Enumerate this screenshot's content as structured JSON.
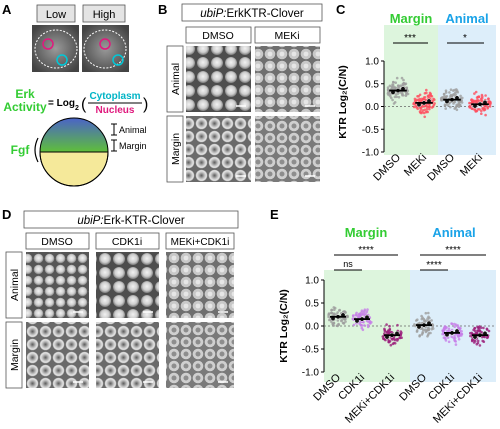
{
  "panels": {
    "A": {
      "letter": "A",
      "low_label": "Low",
      "high_label": "High",
      "erk_line1": "Erk",
      "erk_line2": "Activity",
      "equals_log": "= Log",
      "log_sub": "2",
      "cytoplasm": "Cytoplasm",
      "nucleus": "Nucleus",
      "fgf": "Fgf",
      "animal": "Animal",
      "margin": "Margin"
    },
    "B": {
      "letter": "B",
      "header_italic": "ubiP:",
      "header_rest": "ErkKTR-Clover",
      "cols": [
        "DMSO",
        "MEKi"
      ],
      "rows": [
        "Animal",
        "Margin"
      ]
    },
    "C": {
      "letter": "C",
      "group_margin": "Margin",
      "group_animal": "Animal",
      "sig_margin": "***",
      "sig_animal": "*",
      "ylabel": "KTR Log₂(C/N)",
      "yticks": [
        "1.0",
        "0.5",
        "0.0",
        "-0.5",
        "-1.0"
      ],
      "xlabels": [
        "DMSO",
        "MEKi",
        "DMSO",
        "MEKi"
      ]
    },
    "D": {
      "letter": "D",
      "header_italic": "ubiP:",
      "header_rest": "Erk-KTR-Clover",
      "cols": [
        "DMSO",
        "CDK1i",
        "MEKi+CDK1i"
      ],
      "rows": [
        "Animal",
        "Margin"
      ]
    },
    "E": {
      "letter": "E",
      "group_margin": "Margin",
      "group_animal": "Animal",
      "sig_ns": "ns",
      "sig_left_long": "****",
      "sig_right_long": "****",
      "sig_right_short": "****",
      "ylabel": "KTR Log₂(C/N)",
      "yticks": [
        "1.0",
        "0.5",
        "0.0",
        "-0.5",
        "-1.0"
      ],
      "xlabels": [
        "DMSO",
        "CDK1i",
        "MEKi+CDK1i",
        "DMSO",
        "CDK1i",
        "MEKi+CDK1i"
      ]
    }
  },
  "colors": {
    "green_label": "#33cc33",
    "blue_label": "#1aa3e8",
    "magenta": "#e0197d",
    "cyan": "#00c8d8",
    "margin_bg": "#ddf5dd",
    "animal_bg": "#ddeefa",
    "dmso_dots": "#9e9e9e",
    "meki_dots": "#ff4d5e",
    "cdk1_dots": "#c77ee8",
    "combo_dots": "#9b1f7a"
  },
  "chart_data": [
    {
      "type": "scatter",
      "title": "",
      "ylabel": "KTR Log₂(C/N)",
      "ylim": [
        -1.0,
        1.0
      ],
      "categories": [
        "Margin DMSO",
        "Margin MEKi",
        "Animal DMSO",
        "Animal MEKi"
      ],
      "series": [
        {
          "values": [
            0.35,
            0.08,
            0.15,
            0.05
          ]
        }
      ]
    },
    {
      "type": "scatter",
      "title": "",
      "ylabel": "KTR Log₂(C/N)",
      "ylim": [
        -1.0,
        1.0
      ],
      "categories": [
        "Margin DMSO",
        "Margin CDK1i",
        "Margin MEKi+CDK1i",
        "Animal DMSO",
        "Animal CDK1i",
        "Animal MEKi+CDK1i"
      ],
      "series": [
        {
          "values": [
            0.2,
            0.15,
            -0.2,
            0.02,
            -0.15,
            -0.2
          ]
        }
      ]
    }
  ]
}
